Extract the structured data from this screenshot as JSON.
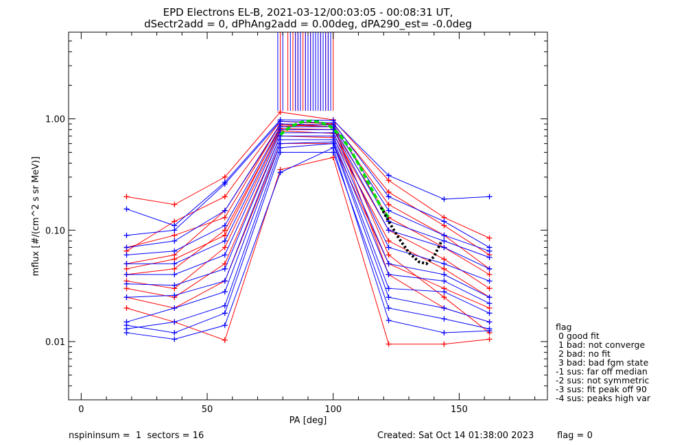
{
  "chart_data": {
    "type": "scatter",
    "title": "EPD Electrons EL-B, 2021-03-12/00:03:05 - 00:08:31 UT,",
    "subtitle": "dSectr2add = 0, dPhAng2add = 0.00deg, dPA290_est=  -0.0deg",
    "xlabel": "PA [deg]",
    "ylabel": "mflux [#/(cm^2 s sr MeV)]",
    "xlim": [
      -5,
      185
    ],
    "ylim": [
      0.003,
      6
    ],
    "y_scale": "log",
    "xticks": [
      "0",
      "50",
      "100",
      "150"
    ],
    "yticks": [
      "0.01",
      "0.10",
      "1.00"
    ],
    "grid": false,
    "pa_bins": [
      18,
      37,
      57,
      79,
      100,
      122,
      144,
      162
    ],
    "series": [
      {
        "color": "#ff0000",
        "values": [
          0.2,
          0.17,
          0.3,
          1.15,
          0.98,
          0.28,
          0.13,
          0.085
        ]
      },
      {
        "color": "#ff0000",
        "values": [
          0.065,
          0.12,
          0.2,
          0.95,
          0.9,
          0.22,
          0.11,
          0.06
        ]
      },
      {
        "color": "#ff0000",
        "values": [
          0.05,
          0.06,
          0.15,
          0.88,
          0.85,
          0.17,
          0.09,
          0.045
        ]
      },
      {
        "color": "#ff0000",
        "values": [
          0.04,
          0.045,
          0.1,
          0.82,
          0.8,
          0.13,
          0.07,
          0.04
        ]
      },
      {
        "color": "#ff0000",
        "values": [
          0.035,
          0.03,
          0.07,
          0.78,
          0.74,
          0.1,
          0.055,
          0.03
        ]
      },
      {
        "color": "#ff0000",
        "values": [
          0.03,
          0.025,
          0.05,
          0.7,
          0.68,
          0.08,
          0.045,
          0.025
        ]
      },
      {
        "color": "#ff0000",
        "values": [
          0.025,
          0.02,
          0.035,
          0.6,
          0.6,
          0.05,
          0.03,
          0.02
        ]
      },
      {
        "color": "#ff0000",
        "values": [
          0.02,
          0.015,
          0.0103,
          0.35,
          0.45,
          0.0095,
          0.0095,
          0.0105
        ]
      },
      {
        "color": "#ff0000",
        "values": [
          0.045,
          0.055,
          0.09,
          0.85,
          0.9,
          0.04,
          0.02,
          0.015
        ]
      },
      {
        "color": "#ff0000",
        "values": [
          0.07,
          0.09,
          0.13,
          0.9,
          0.85,
          0.06,
          0.025,
          0.012
        ]
      },
      {
        "color": "#0000ff",
        "values": [
          0.155,
          0.11,
          0.27,
          0.98,
          0.97,
          0.31,
          0.19,
          0.2
        ]
      },
      {
        "color": "#0000ff",
        "values": [
          0.09,
          0.1,
          0.26,
          0.95,
          0.92,
          0.2,
          0.12,
          0.07
        ]
      },
      {
        "color": "#0000ff",
        "values": [
          0.07,
          0.08,
          0.15,
          0.9,
          0.88,
          0.15,
          0.09,
          0.065
        ]
      },
      {
        "color": "#0000ff",
        "values": [
          0.06,
          0.065,
          0.11,
          0.85,
          0.85,
          0.12,
          0.08,
          0.057
        ]
      },
      {
        "color": "#0000ff",
        "values": [
          0.05,
          0.05,
          0.08,
          0.8,
          0.8,
          0.1,
          0.07,
          0.045
        ]
      },
      {
        "color": "#0000ff",
        "values": [
          0.04,
          0.04,
          0.06,
          0.75,
          0.75,
          0.07,
          0.05,
          0.035
        ]
      },
      {
        "color": "#0000ff",
        "values": [
          0.033,
          0.032,
          0.045,
          0.7,
          0.7,
          0.05,
          0.04,
          0.025
        ]
      },
      {
        "color": "#0000ff",
        "values": [
          0.025,
          0.026,
          0.035,
          0.65,
          0.65,
          0.04,
          0.035,
          0.022
        ]
      },
      {
        "color": "#0000ff",
        "values": [
          0.015,
          0.02,
          0.028,
          0.6,
          0.62,
          0.03,
          0.028,
          0.018
        ]
      },
      {
        "color": "#0000ff",
        "values": [
          0.013,
          0.015,
          0.021,
          0.55,
          0.6,
          0.025,
          0.02,
          0.015
        ]
      },
      {
        "color": "#0000ff",
        "values": [
          0.012,
          0.0105,
          0.014,
          0.33,
          0.55,
          0.0155,
          0.012,
          0.0125
        ]
      },
      {
        "color": "#0000ff",
        "values": [
          0.014,
          0.012,
          0.018,
          0.5,
          0.5,
          0.02,
          0.016,
          0.013
        ]
      }
    ],
    "vertical_lines": [
      {
        "color": "#ff0000",
        "x": [
          79,
          82,
          84,
          85,
          86,
          87,
          88,
          89,
          91,
          93,
          95,
          97,
          98,
          100
        ]
      },
      {
        "color": "#0000ff",
        "x": [
          78,
          80,
          83,
          85,
          86,
          87,
          89,
          90,
          91,
          92,
          93,
          94,
          95,
          96,
          97,
          98,
          99
        ]
      }
    ],
    "fits": [
      {
        "color": "#00dd00",
        "style": "dashed",
        "x": [
          79,
          83,
          87,
          91,
          95,
          99,
          103,
          107,
          111,
          115,
          119,
          122
        ],
        "y": [
          0.72,
          0.85,
          0.93,
          0.96,
          0.93,
          0.85,
          0.7,
          0.52,
          0.36,
          0.24,
          0.16,
          0.13
        ]
      },
      {
        "color": "#000000",
        "style": "dotted",
        "x": [
          119,
          122,
          126,
          130,
          134,
          137,
          140,
          143
        ],
        "y": [
          0.16,
          0.12,
          0.085,
          0.063,
          0.052,
          0.05,
          0.058,
          0.08
        ]
      }
    ]
  },
  "legend": {
    "title": "flag",
    "items": [
      " 0 good fit",
      " 1 bad: not converge",
      " 2 bad: no fit",
      " 3 bad: bad fgm state",
      "-1 sus: far off median",
      "-2 sus: not symmetric",
      "-3 sus: fit peak off 90",
      "-4 sus: peaks high var"
    ]
  },
  "footer": {
    "left": "nspininsum =  1  sectors = 16",
    "created": "Created: Sat Oct 14 01:38:00 2023",
    "flag": "flag = 0"
  }
}
